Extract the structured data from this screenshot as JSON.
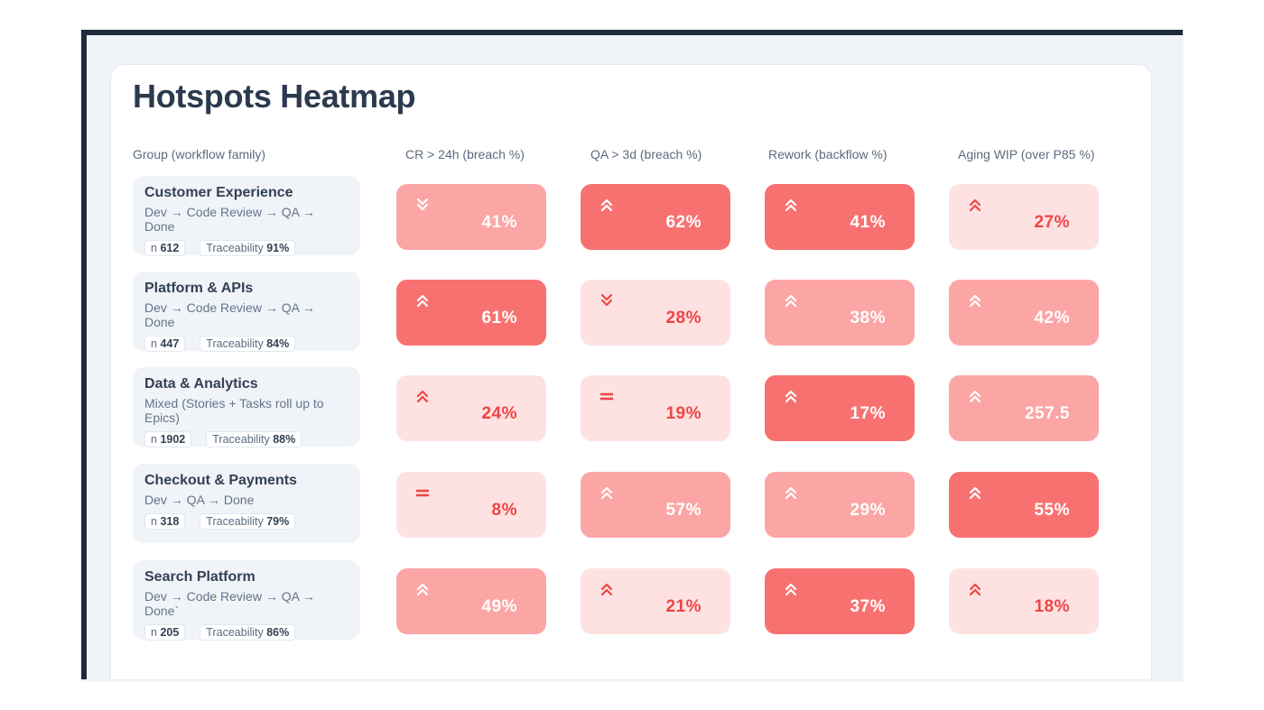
{
  "title": "Hotspots Heatmap",
  "columns": [
    "Group (workflow family)",
    "CR > 24h (breach %)",
    "QA > 3d (breach %)",
    "Rework (backflow %)",
    "Aging WIP (over P85 %)"
  ],
  "colors": {
    "strong": "#f87171",
    "mid": "#fca5a5",
    "light": "#fee2e2",
    "light_text": "#ef4444"
  },
  "rows": [
    {
      "name": "Customer Experience",
      "flow": "Dev → Code Review → QA → Done",
      "n_label": "n",
      "n": "612",
      "trace_label": "Traceability",
      "trace": "91%",
      "cells": [
        {
          "value": "41%",
          "level": "mid",
          "trend": "down"
        },
        {
          "value": "62%",
          "level": "strong",
          "trend": "up"
        },
        {
          "value": "41%",
          "level": "strong",
          "trend": "up"
        },
        {
          "value": "27%",
          "level": "light",
          "trend": "up"
        }
      ]
    },
    {
      "name": "Platform & APIs",
      "flow": "Dev → Code Review → QA → Done",
      "n_label": "n",
      "n": "447",
      "trace_label": "Traceability",
      "trace": "84%",
      "cells": [
        {
          "value": "61%",
          "level": "strong",
          "trend": "up"
        },
        {
          "value": "28%",
          "level": "light",
          "trend": "down"
        },
        {
          "value": "38%",
          "level": "mid",
          "trend": "up"
        },
        {
          "value": "42%",
          "level": "mid",
          "trend": "up"
        }
      ]
    },
    {
      "name": "Data & Analytics",
      "flow": "Mixed (Stories + Tasks roll up to Epics)",
      "n_label": "n",
      "n": "1902",
      "trace_label": "Traceability",
      "trace": "88%",
      "cells": [
        {
          "value": "24%",
          "level": "light",
          "trend": "up"
        },
        {
          "value": "19%",
          "level": "light",
          "trend": "flat"
        },
        {
          "value": "17%",
          "level": "strong",
          "trend": "up"
        },
        {
          "value": "257.5",
          "level": "mid",
          "trend": "up"
        }
      ]
    },
    {
      "name": "Checkout & Payments",
      "flow": "Dev → QA → Done",
      "n_label": "n",
      "n": "318",
      "trace_label": "Traceability",
      "trace": "79%",
      "cells": [
        {
          "value": "8%",
          "level": "light",
          "trend": "flat"
        },
        {
          "value": "57%",
          "level": "mid",
          "trend": "up"
        },
        {
          "value": "29%",
          "level": "mid",
          "trend": "up"
        },
        {
          "value": "55%",
          "level": "strong",
          "trend": "up"
        }
      ]
    },
    {
      "name": "Search Platform",
      "flow": "Dev → Code Review → QA → Done`",
      "n_label": "n",
      "n": "205",
      "trace_label": "Traceability",
      "trace": "86%",
      "cells": [
        {
          "value": "49%",
          "level": "mid",
          "trend": "up"
        },
        {
          "value": "21%",
          "level": "light",
          "trend": "up"
        },
        {
          "value": "37%",
          "level": "strong",
          "trend": "up"
        },
        {
          "value": "18%",
          "level": "light",
          "trend": "up"
        }
      ]
    }
  ]
}
